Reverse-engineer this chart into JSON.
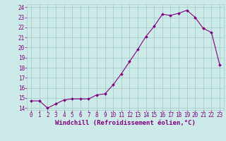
{
  "x": [
    0,
    1,
    2,
    3,
    4,
    5,
    6,
    7,
    8,
    9,
    10,
    11,
    12,
    13,
    14,
    15,
    16,
    17,
    18,
    19,
    20,
    21,
    22,
    23
  ],
  "y": [
    14.7,
    14.7,
    14.0,
    14.4,
    14.8,
    14.9,
    14.9,
    14.9,
    15.3,
    15.4,
    16.3,
    17.4,
    18.6,
    19.8,
    21.1,
    22.1,
    23.3,
    23.2,
    23.4,
    23.7,
    23.0,
    21.9,
    21.5,
    18.3
  ],
  "line_color": "#800080",
  "marker": "D",
  "marker_size": 2.0,
  "bg_color": "#cceae8",
  "grid_color": "#aacccc",
  "xlabel": "Windchill (Refroidissement éolien,°C)",
  "ylabel_ticks": [
    14,
    15,
    16,
    17,
    18,
    19,
    20,
    21,
    22,
    23,
    24
  ],
  "xlabel_ticks": [
    0,
    1,
    2,
    3,
    4,
    5,
    6,
    7,
    8,
    9,
    10,
    11,
    12,
    13,
    14,
    15,
    16,
    17,
    18,
    19,
    20,
    21,
    22,
    23
  ],
  "xlim": [
    -0.5,
    23.5
  ],
  "ylim": [
    13.8,
    24.3
  ],
  "tick_color": "#800080",
  "label_color": "#800080",
  "tick_fontsize": 5.5,
  "label_fontsize": 6.5
}
